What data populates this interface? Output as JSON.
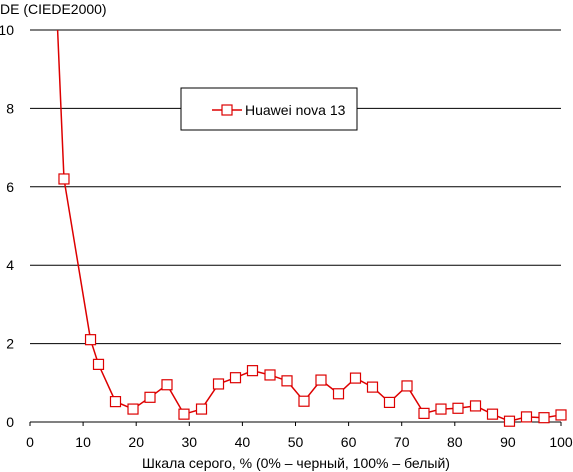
{
  "chart_data": {
    "type": "line",
    "title": "",
    "ylabel": "DE (CIEDE2000)",
    "xlabel": "Шкала серого, % (0% – черный, 100% – белый)",
    "xlim": [
      0,
      100
    ],
    "ylim": [
      0,
      10
    ],
    "x_ticks": [
      0,
      10,
      20,
      30,
      40,
      50,
      60,
      70,
      80,
      90,
      100
    ],
    "y_ticks": [
      0,
      2,
      4,
      6,
      8,
      10
    ],
    "grid": "horizontal",
    "legend_position": "top-center",
    "series_color": "#dd0000",
    "series": [
      {
        "name": "Huawei nova 13",
        "points": [
          [
            5.2,
            10
          ],
          [
            6.4,
            6.2
          ],
          [
            11.4,
            2.1
          ],
          [
            12.9,
            1.47
          ],
          [
            16.1,
            0.52
          ],
          [
            19.4,
            0.33
          ],
          [
            22.6,
            0.63
          ],
          [
            25.8,
            0.95
          ],
          [
            29.0,
            0.2
          ],
          [
            32.3,
            0.33
          ],
          [
            35.5,
            0.97
          ],
          [
            38.7,
            1.13
          ],
          [
            41.9,
            1.31
          ],
          [
            45.2,
            1.2
          ],
          [
            48.4,
            1.05
          ],
          [
            51.6,
            0.53
          ],
          [
            54.8,
            1.07
          ],
          [
            58.1,
            0.72
          ],
          [
            61.3,
            1.12
          ],
          [
            64.5,
            0.89
          ],
          [
            67.7,
            0.5
          ],
          [
            71.0,
            0.92
          ],
          [
            74.2,
            0.22
          ],
          [
            77.4,
            0.33
          ],
          [
            80.6,
            0.35
          ],
          [
            83.9,
            0.41
          ],
          [
            87.1,
            0.2
          ],
          [
            90.3,
            0.02
          ],
          [
            93.5,
            0.13
          ],
          [
            96.8,
            0.11
          ],
          [
            100,
            0.18
          ]
        ]
      }
    ]
  }
}
